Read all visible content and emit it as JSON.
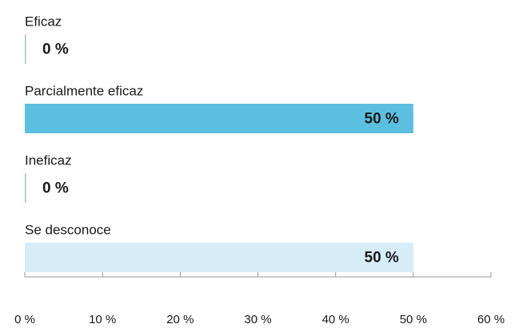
{
  "chart_data": {
    "type": "barh",
    "categories": [
      "Eficaz",
      "Parcialmente eficaz",
      "Ineficaz",
      "Se desconoce"
    ],
    "values": [
      0,
      50,
      0,
      50
    ],
    "value_labels": [
      "0 %",
      "50 %",
      "0 %",
      "50 %"
    ],
    "colors": [
      "#5bbfe0",
      "#5bbfe0",
      "#5bbfe0",
      "#d6edf8"
    ],
    "xlim": [
      0,
      60
    ],
    "xticks": [
      {
        "value": 0,
        "label": "0 %"
      },
      {
        "value": 10,
        "label": "10 %"
      },
      {
        "value": 20,
        "label": "20 %"
      },
      {
        "value": 30,
        "label": "30 %"
      },
      {
        "value": 40,
        "label": "40 %"
      },
      {
        "value": 50,
        "label": "50 %"
      },
      {
        "value": 60,
        "label": "60 %"
      }
    ]
  }
}
